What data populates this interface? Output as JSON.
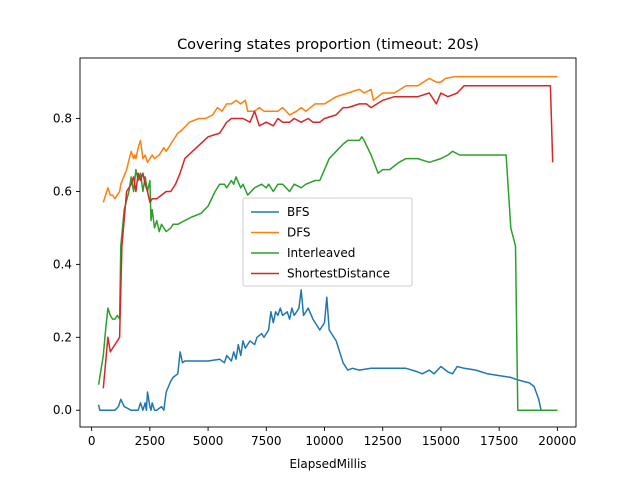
{
  "chart_data": {
    "type": "line",
    "title": "Covering states proportion (timeout: 20s)",
    "xlabel": "ElapsedMillis",
    "ylabel": "",
    "xlim": [
      -500,
      20800
    ],
    "ylim": [
      -0.046,
      0.966
    ],
    "x_ticks": [
      {
        "value": 0,
        "label": "0"
      },
      {
        "value": 2500,
        "label": "2500"
      },
      {
        "value": 5000,
        "label": "5000"
      },
      {
        "value": 7500,
        "label": "7500"
      },
      {
        "value": 10000,
        "label": "10000"
      },
      {
        "value": 12500,
        "label": "12500"
      },
      {
        "value": 15000,
        "label": "15000"
      },
      {
        "value": 17500,
        "label": "17500"
      },
      {
        "value": 20000,
        "label": "20000"
      }
    ],
    "y_ticks": [
      {
        "value": 0.0,
        "label": "0.0"
      },
      {
        "value": 0.2,
        "label": "0.2"
      },
      {
        "value": 0.4,
        "label": "0.4"
      },
      {
        "value": 0.6,
        "label": "0.6"
      },
      {
        "value": 0.8,
        "label": "0.8"
      }
    ],
    "grid": false,
    "legend_position": "center",
    "series": [
      {
        "name": "BFS",
        "color": "#1f77b4",
        "x": [
          300,
          350,
          500,
          700,
          1000,
          1150,
          1250,
          1400,
          1700,
          2000,
          2100,
          2200,
          2300,
          2350,
          2400,
          2500,
          2550,
          2600,
          2700,
          2800,
          3000,
          3100,
          3200,
          3400,
          3500,
          3700,
          3800,
          3900,
          4000,
          4500,
          5000,
          5500,
          5700,
          5800,
          6000,
          6100,
          6200,
          6300,
          6400,
          6500,
          6600,
          6800,
          7000,
          7100,
          7300,
          7400,
          7600,
          7700,
          7800,
          7900,
          8000,
          8100,
          8200,
          8400,
          8500,
          8600,
          8700,
          8800,
          8900,
          9000,
          9100,
          9200,
          9300,
          9500,
          9800,
          10000,
          10100,
          10200,
          10500,
          10800,
          11000,
          11200,
          11500,
          12000,
          12500,
          13000,
          13500,
          14000,
          14200,
          14500,
          14700,
          15000,
          15300,
          15500,
          15700,
          16000,
          16500,
          17000,
          17500,
          18000,
          18200,
          18500,
          18800,
          19000,
          19200,
          19300,
          19500,
          20000
        ],
        "y": [
          0.015,
          0.0,
          0.0,
          0.0,
          0.0,
          0.01,
          0.03,
          0.01,
          0.0,
          0.0,
          0.02,
          0.0,
          0.02,
          0.0,
          0.05,
          0.01,
          0.0,
          0.02,
          0.0,
          0.0,
          0.01,
          0.0,
          0.05,
          0.08,
          0.09,
          0.1,
          0.16,
          0.13,
          0.135,
          0.135,
          0.135,
          0.14,
          0.13,
          0.15,
          0.135,
          0.16,
          0.14,
          0.18,
          0.15,
          0.19,
          0.17,
          0.19,
          0.18,
          0.2,
          0.21,
          0.2,
          0.22,
          0.27,
          0.24,
          0.27,
          0.26,
          0.28,
          0.26,
          0.27,
          0.25,
          0.28,
          0.26,
          0.27,
          0.28,
          0.33,
          0.26,
          0.27,
          0.28,
          0.25,
          0.22,
          0.24,
          0.31,
          0.22,
          0.19,
          0.13,
          0.11,
          0.115,
          0.11,
          0.115,
          0.115,
          0.115,
          0.115,
          0.105,
          0.1,
          0.11,
          0.1,
          0.12,
          0.105,
          0.1,
          0.12,
          0.115,
          0.11,
          0.1,
          0.095,
          0.09,
          0.085,
          0.08,
          0.075,
          0.065,
          0.03,
          0.0,
          0.0,
          0.0
        ]
      },
      {
        "name": "DFS",
        "color": "#ff7f0e",
        "x": [
          500,
          700,
          800,
          900,
          1000,
          1200,
          1250,
          1500,
          1700,
          1800,
          1850,
          1900,
          2000,
          2100,
          2200,
          2300,
          2400,
          2500,
          2600,
          2700,
          2900,
          3100,
          3200,
          3400,
          3500,
          3700,
          3900,
          4200,
          4600,
          4900,
          5200,
          5400,
          5600,
          5800,
          6000,
          6200,
          6400,
          6600,
          6700,
          7000,
          7200,
          7400,
          7800,
          8000,
          8200,
          8500,
          8800,
          9000,
          9200,
          9600,
          10000,
          10500,
          11000,
          11500,
          11700,
          12000,
          12100,
          12500,
          13000,
          13500,
          14000,
          14500,
          14800,
          15000,
          15200,
          15600,
          16000,
          18000,
          20000
        ],
        "y": [
          0.57,
          0.61,
          0.59,
          0.59,
          0.58,
          0.6,
          0.62,
          0.66,
          0.71,
          0.69,
          0.7,
          0.69,
          0.72,
          0.74,
          0.69,
          0.7,
          0.68,
          0.69,
          0.7,
          0.69,
          0.7,
          0.72,
          0.71,
          0.73,
          0.74,
          0.76,
          0.77,
          0.79,
          0.8,
          0.8,
          0.81,
          0.83,
          0.82,
          0.84,
          0.84,
          0.85,
          0.84,
          0.85,
          0.82,
          0.82,
          0.83,
          0.82,
          0.82,
          0.82,
          0.83,
          0.81,
          0.82,
          0.83,
          0.82,
          0.84,
          0.84,
          0.86,
          0.87,
          0.88,
          0.87,
          0.88,
          0.85,
          0.87,
          0.87,
          0.89,
          0.89,
          0.91,
          0.9,
          0.9,
          0.91,
          0.915,
          0.915,
          0.915,
          0.915
        ]
      },
      {
        "name": "Interleaved",
        "color": "#2ca02c",
        "x": [
          300,
          500,
          600,
          700,
          800,
          900,
          1000,
          1100,
          1200,
          1250,
          1400,
          1600,
          1700,
          1800,
          1900,
          2000,
          2100,
          2200,
          2300,
          2400,
          2500,
          2550,
          2600,
          2700,
          2800,
          2900,
          3000,
          3100,
          3200,
          3400,
          3500,
          3700,
          4000,
          4300,
          4700,
          5000,
          5300,
          5500,
          5700,
          5800,
          6000,
          6100,
          6200,
          6400,
          6500,
          6700,
          7000,
          7300,
          7500,
          7600,
          7800,
          8000,
          8200,
          8500,
          8700,
          9000,
          9200,
          9600,
          9800,
          10000,
          10200,
          10500,
          10800,
          11000,
          11200,
          11500,
          11600,
          11700,
          12000,
          12300,
          12500,
          12800,
          13000,
          13200,
          13500,
          14000,
          14500,
          15000,
          15300,
          15500,
          15800,
          16000,
          16500,
          17000,
          17500,
          17800,
          18000,
          18200,
          18300,
          18500,
          19000,
          20000
        ],
        "y": [
          0.07,
          0.15,
          0.22,
          0.28,
          0.26,
          0.25,
          0.25,
          0.26,
          0.25,
          0.45,
          0.55,
          0.6,
          0.64,
          0.6,
          0.66,
          0.63,
          0.65,
          0.6,
          0.64,
          0.6,
          0.63,
          0.52,
          0.55,
          0.5,
          0.52,
          0.49,
          0.51,
          0.5,
          0.49,
          0.5,
          0.51,
          0.51,
          0.52,
          0.53,
          0.54,
          0.56,
          0.6,
          0.62,
          0.62,
          0.61,
          0.63,
          0.62,
          0.64,
          0.61,
          0.62,
          0.59,
          0.61,
          0.62,
          0.61,
          0.62,
          0.6,
          0.62,
          0.62,
          0.6,
          0.62,
          0.61,
          0.62,
          0.63,
          0.63,
          0.66,
          0.69,
          0.71,
          0.73,
          0.74,
          0.74,
          0.74,
          0.75,
          0.74,
          0.7,
          0.65,
          0.66,
          0.66,
          0.67,
          0.68,
          0.69,
          0.69,
          0.68,
          0.69,
          0.7,
          0.71,
          0.7,
          0.7,
          0.7,
          0.7,
          0.7,
          0.7,
          0.5,
          0.45,
          0.0,
          0.0,
          0.0,
          0.0
        ]
      },
      {
        "name": "ShortestDistance",
        "color": "#d62728",
        "x": [
          500,
          700,
          800,
          1000,
          1200,
          1300,
          1500,
          1700,
          1800,
          1900,
          2000,
          2100,
          2200,
          2300,
          2400,
          2500,
          2600,
          2800,
          3000,
          3200,
          3400,
          3600,
          3800,
          4000,
          4500,
          5000,
          5500,
          5800,
          6000,
          6200,
          6500,
          6800,
          7000,
          7200,
          7500,
          7800,
          8000,
          8200,
          8500,
          8700,
          9000,
          9300,
          9500,
          9800,
          10000,
          10500,
          10800,
          11000,
          11500,
          11800,
          12000,
          12500,
          13000,
          13500,
          14000,
          14500,
          14800,
          15000,
          15300,
          15700,
          16000,
          17000,
          19000,
          19700,
          19800
        ],
        "y": [
          0.06,
          0.2,
          0.16,
          0.18,
          0.2,
          0.45,
          0.6,
          0.62,
          0.64,
          0.6,
          0.65,
          0.63,
          0.65,
          0.62,
          0.6,
          0.57,
          0.58,
          0.58,
          0.59,
          0.6,
          0.6,
          0.62,
          0.65,
          0.69,
          0.72,
          0.75,
          0.76,
          0.79,
          0.8,
          0.8,
          0.8,
          0.79,
          0.82,
          0.78,
          0.79,
          0.78,
          0.8,
          0.79,
          0.79,
          0.8,
          0.79,
          0.8,
          0.79,
          0.79,
          0.8,
          0.81,
          0.83,
          0.83,
          0.84,
          0.84,
          0.83,
          0.85,
          0.86,
          0.86,
          0.86,
          0.87,
          0.84,
          0.87,
          0.86,
          0.87,
          0.89,
          0.89,
          0.89,
          0.89,
          0.68
        ]
      }
    ]
  }
}
